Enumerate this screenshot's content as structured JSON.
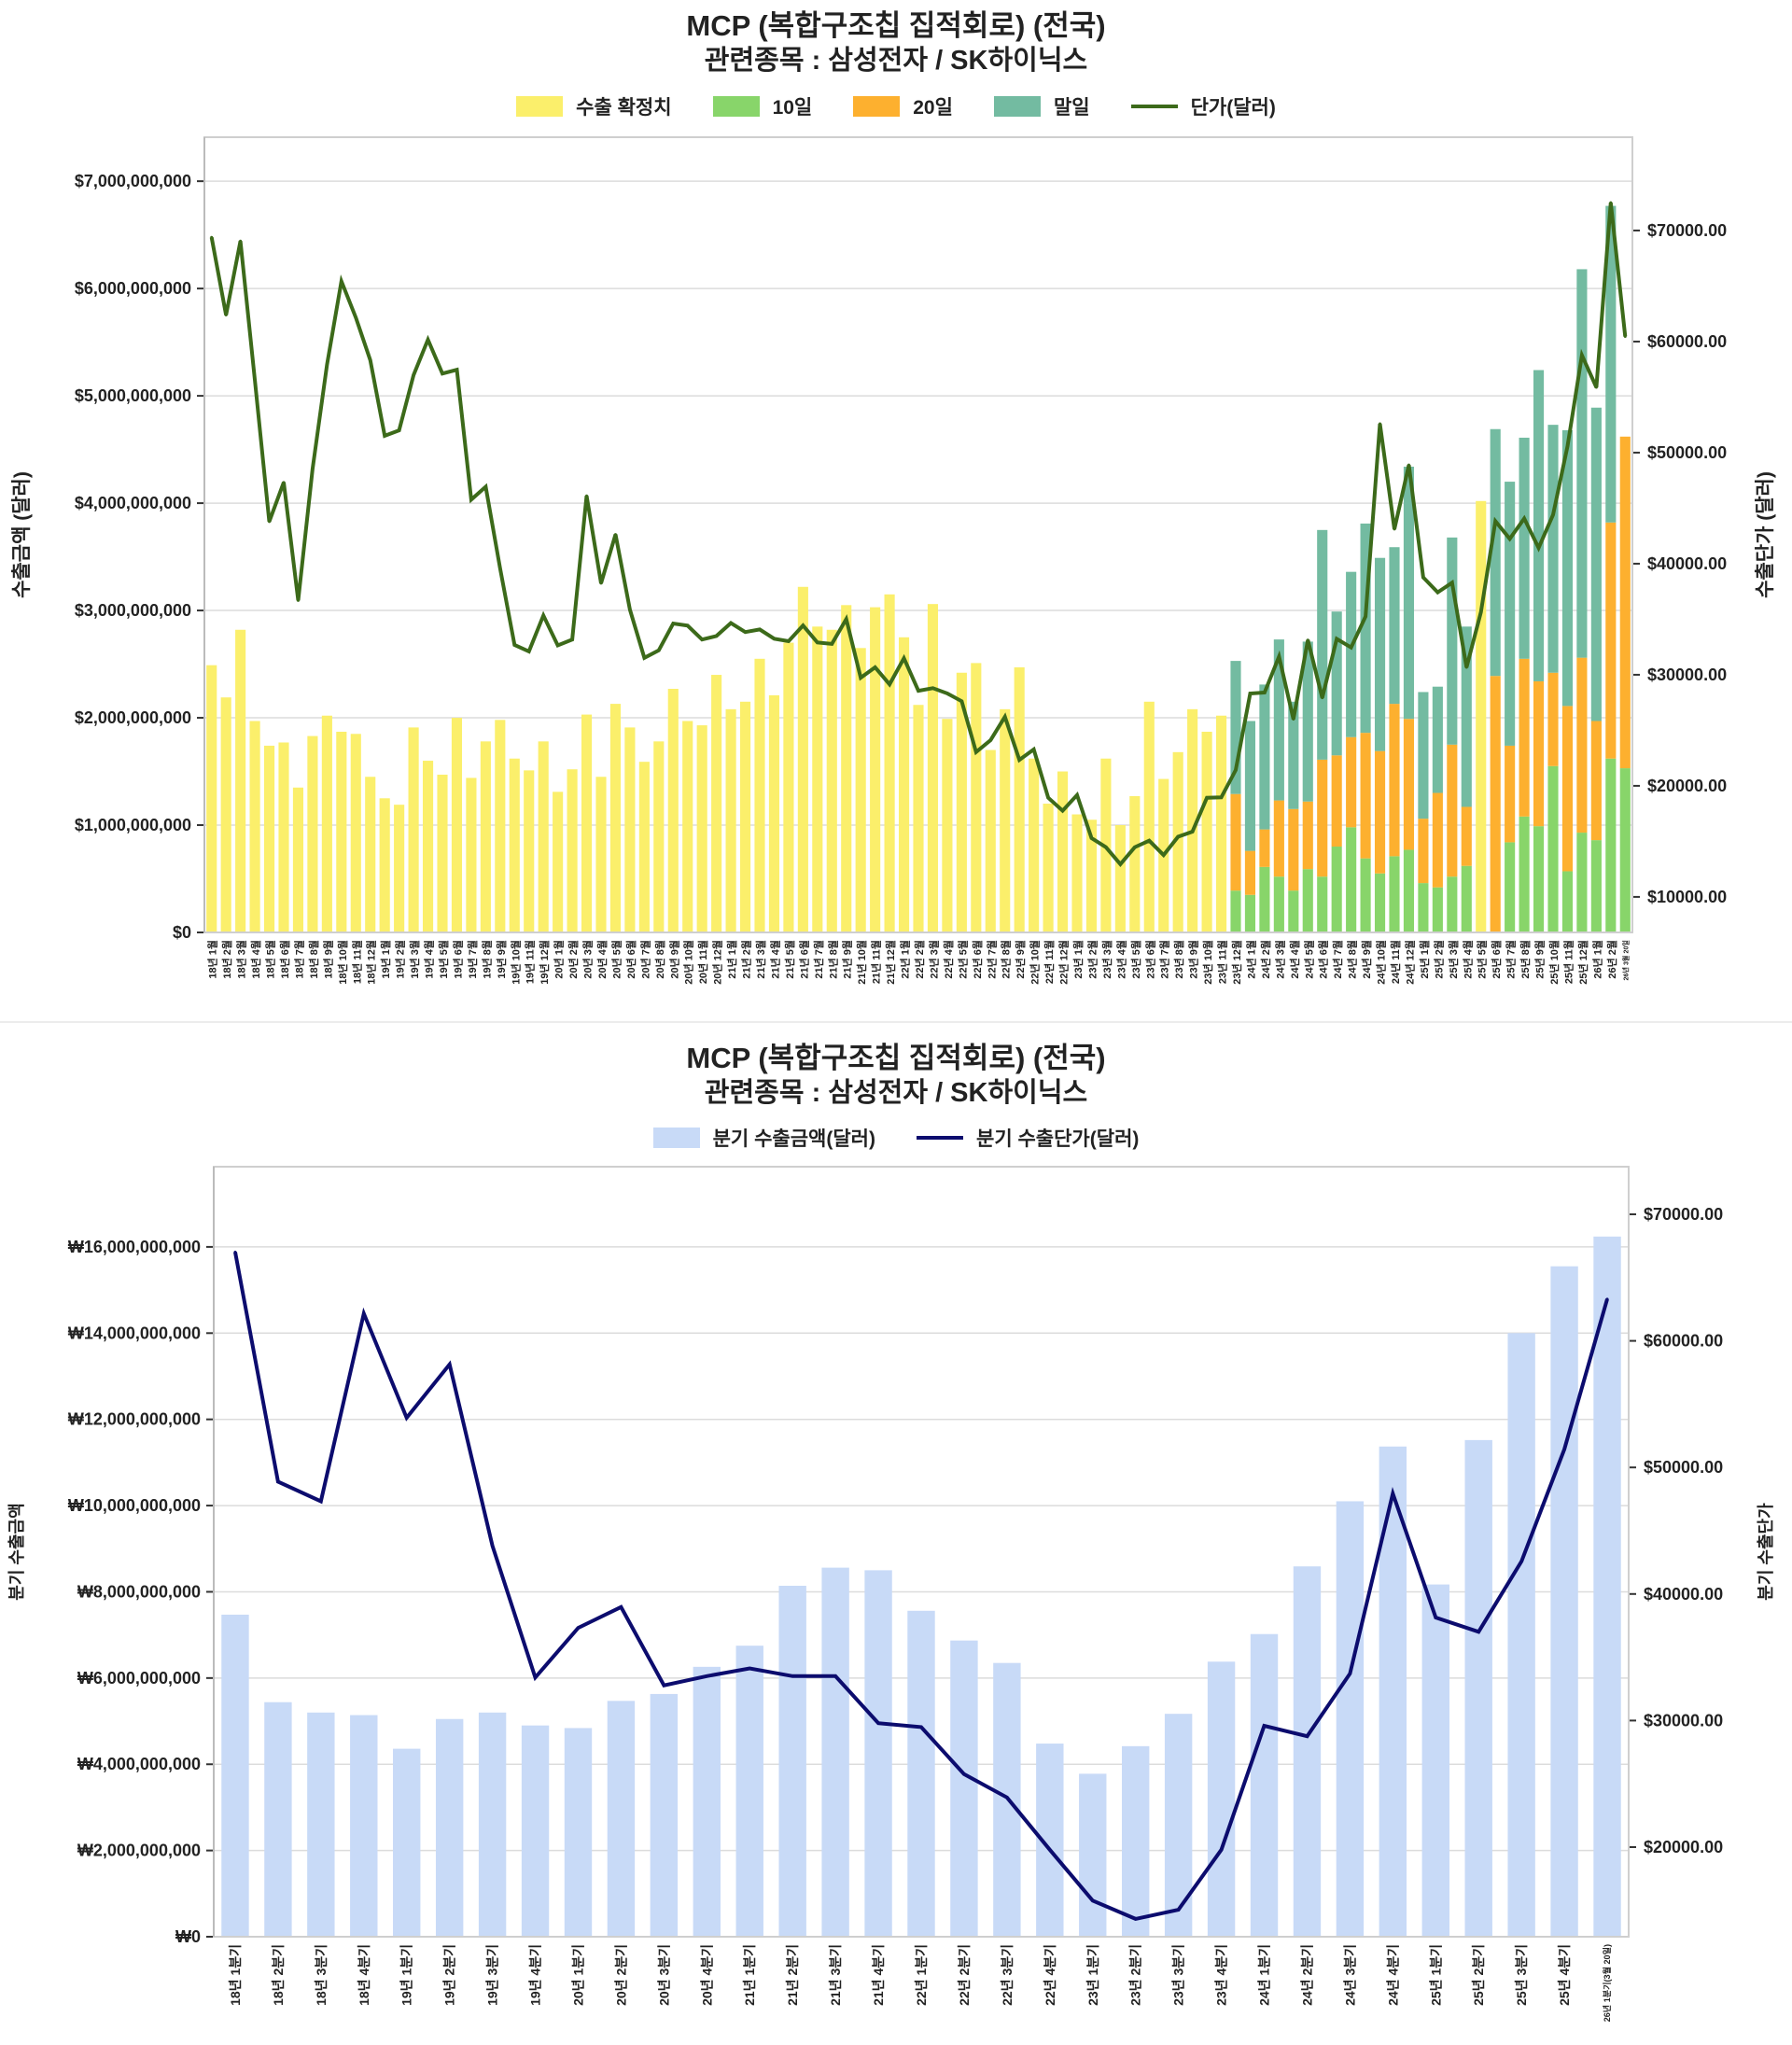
{
  "chart_data": [
    {
      "type": "bar+line",
      "title": "MCP (복합구조칩 집적회로) (전국)",
      "subtitle": "관련종목 : 삼성전자 / SK하이닉스",
      "legend": [
        "수출 확정치",
        "10일",
        "20일",
        "말일",
        "단가(달러)"
      ],
      "ylabel_left": "수출금액 (달러)",
      "ylabel_right": "수출단가 (달러)",
      "ylim_left_billion_usd": [
        0,
        7.41
      ],
      "ylim_right": [
        6800,
        78400
      ],
      "grid": true,
      "legend_position": "top-center",
      "colors": {
        "confirmed": "#fbef6b",
        "d10": "#88d56a",
        "d20": "#fdb02f",
        "end": "#73bba1",
        "price": "#3c6a1a"
      },
      "y_left_ticks": {
        "values": [
          0,
          1,
          2,
          3,
          4,
          5,
          6,
          7
        ],
        "labels": [
          "$0",
          "$1,000,000,000",
          "$2,000,000,000",
          "$3,000,000,000",
          "$4,000,000,000",
          "$5,000,000,000",
          "$6,000,000,000",
          "$7,000,000,000"
        ]
      },
      "y_right_ticks": {
        "values": [
          10000,
          20000,
          30000,
          40000,
          50000,
          60000,
          70000
        ],
        "labels": [
          "$10000.00",
          "$20000.00",
          "$30000.00",
          "$40000.00",
          "$50000.00",
          "$60000.00",
          "$70000.00"
        ]
      },
      "categories": [
        "18년 1월",
        "18년 2월",
        "18년 3월",
        "18년 4월",
        "18년 5월",
        "18년 6월",
        "18년 7월",
        "18년 8월",
        "18년 9월",
        "18년 10월",
        "18년 11월",
        "18년 12월",
        "19년 1월",
        "19년 2월",
        "19년 3월",
        "19년 4월",
        "19년 5월",
        "19년 6월",
        "19년 7월",
        "19년 8월",
        "19년 9월",
        "19년 10월",
        "19년 11월",
        "19년 12월",
        "20년 1월",
        "20년 2월",
        "20년 3월",
        "20년 4월",
        "20년 5월",
        "20년 6월",
        "20년 7월",
        "20년 8월",
        "20년 9월",
        "20년 10월",
        "20년 11월",
        "20년 12월",
        "21년 1월",
        "21년 2월",
        "21년 3월",
        "21년 4월",
        "21년 5월",
        "21년 6월",
        "21년 7월",
        "21년 8월",
        "21년 9월",
        "21년 10월",
        "21년 11월",
        "21년 12월",
        "22년 1월",
        "22년 2월",
        "22년 3월",
        "22년 4월",
        "22년 5월",
        "22년 6월",
        "22년 7월",
        "22년 8월",
        "22년 9월",
        "22년 10월",
        "22년 11월",
        "22년 12월",
        "23년 1월",
        "23년 2월",
        "23년 3월",
        "23년 4월",
        "23년 5월",
        "23년 6월",
        "23년 7월",
        "23년 8월",
        "23년 9월",
        "23년 10월",
        "23년 11월",
        "23년 12월",
        "24년 1월",
        "24년 2월",
        "24년 3월",
        "24년 4월",
        "24년 5월",
        "24년 6월",
        "24년 7월",
        "24년 8월",
        "24년 9월",
        "24년 10월",
        "24년 11월",
        "24년 12월",
        "25년 1월",
        "25년 2월",
        "25년 3월",
        "25년 4월",
        "25년 5월",
        "25년 6월",
        "25년 7월",
        "25년 8월",
        "25년 9월",
        "25년 10월",
        "25년 11월",
        "25년 12월",
        "26년 1월",
        "26년 2월",
        "26년 3월 20일"
      ],
      "series": [
        {
          "name": "수출 확정치",
          "type": "bar",
          "values_billion_usd": [
            2.49,
            2.19,
            2.82,
            1.97,
            1.74,
            1.77,
            1.35,
            1.83,
            2.02,
            1.87,
            1.85,
            1.45,
            1.25,
            1.19,
            1.91,
            1.6,
            1.47,
            2.0,
            1.44,
            1.78,
            1.98,
            1.62,
            1.51,
            1.78,
            1.31,
            1.52,
            2.03,
            1.45,
            2.13,
            1.91,
            1.59,
            1.78,
            2.27,
            1.97,
            1.93,
            2.4,
            2.08,
            2.15,
            2.55,
            2.21,
            2.7,
            3.22,
            2.85,
            2.82,
            3.05,
            2.65,
            3.03,
            3.15,
            2.75,
            2.12,
            3.06,
            1.99,
            2.42,
            2.51,
            1.7,
            2.08,
            2.47,
            1.62,
            1.2,
            1.5,
            1.1,
            1.05,
            1.62,
            1.0,
            1.27,
            2.15,
            1.43,
            1.68,
            2.08,
            1.87,
            2.02,
            null,
            null,
            null,
            null,
            null,
            null,
            null,
            null,
            null,
            null,
            null,
            null,
            null,
            null,
            null,
            null,
            null,
            4.02,
            null,
            null,
            null,
            null,
            null,
            null,
            null,
            null,
            null,
            null
          ]
        },
        {
          "name": "10일",
          "type": "stacked-bar",
          "values_billion_usd": [
            null,
            null,
            null,
            null,
            null,
            null,
            null,
            null,
            null,
            null,
            null,
            null,
            null,
            null,
            null,
            null,
            null,
            null,
            null,
            null,
            null,
            null,
            null,
            null,
            null,
            null,
            null,
            null,
            null,
            null,
            null,
            null,
            null,
            null,
            null,
            null,
            null,
            null,
            null,
            null,
            null,
            null,
            null,
            null,
            null,
            null,
            null,
            null,
            null,
            null,
            null,
            null,
            null,
            null,
            null,
            null,
            null,
            null,
            null,
            null,
            null,
            null,
            null,
            null,
            null,
            null,
            null,
            null,
            null,
            null,
            null,
            0.39,
            0.35,
            0.61,
            0.52,
            0.39,
            0.59,
            0.52,
            0.8,
            0.98,
            0.69,
            0.55,
            0.71,
            0.77,
            0.46,
            0.42,
            0.52,
            0.62,
            null,
            0,
            0.84,
            1.08,
            0.99,
            1.55,
            0.57,
            0.93,
            0.86,
            1.62,
            1.53
          ]
        },
        {
          "name": "20일",
          "type": "stacked-bar",
          "values_billion_usd": [
            null,
            null,
            null,
            null,
            null,
            null,
            null,
            null,
            null,
            null,
            null,
            null,
            null,
            null,
            null,
            null,
            null,
            null,
            null,
            null,
            null,
            null,
            null,
            null,
            null,
            null,
            null,
            null,
            null,
            null,
            null,
            null,
            null,
            null,
            null,
            null,
            null,
            null,
            null,
            null,
            null,
            null,
            null,
            null,
            null,
            null,
            null,
            null,
            null,
            null,
            null,
            null,
            null,
            null,
            null,
            null,
            null,
            null,
            null,
            null,
            null,
            null,
            null,
            null,
            null,
            null,
            null,
            null,
            null,
            null,
            null,
            0.9,
            0.41,
            0.35,
            0.71,
            0.76,
            0.63,
            1.09,
            0.85,
            0.84,
            1.17,
            1.14,
            1.42,
            1.22,
            0.6,
            0.88,
            1.23,
            0.55,
            null,
            2.39,
            0.9,
            1.47,
            1.35,
            0.87,
            1.54,
            1.63,
            1.11,
            2.2,
            3.09
          ]
        },
        {
          "name": "말일",
          "type": "stacked-bar",
          "values_billion_usd": [
            null,
            null,
            null,
            null,
            null,
            null,
            null,
            null,
            null,
            null,
            null,
            null,
            null,
            null,
            null,
            null,
            null,
            null,
            null,
            null,
            null,
            null,
            null,
            null,
            null,
            null,
            null,
            null,
            null,
            null,
            null,
            null,
            null,
            null,
            null,
            null,
            null,
            null,
            null,
            null,
            null,
            null,
            null,
            null,
            null,
            null,
            null,
            null,
            null,
            null,
            null,
            null,
            null,
            null,
            null,
            null,
            null,
            null,
            null,
            null,
            null,
            null,
            null,
            null,
            null,
            null,
            null,
            null,
            null,
            null,
            null,
            1.24,
            1.21,
            1.35,
            1.5,
            1.0,
            1.49,
            2.14,
            1.34,
            1.54,
            1.95,
            1.8,
            1.46,
            2.35,
            1.18,
            0.99,
            1.93,
            1.68,
            null,
            2.3,
            2.46,
            2.06,
            2.9,
            2.31,
            2.57,
            3.62,
            2.92,
            2.95,
            0
          ]
        },
        {
          "name": "단가(달러)",
          "type": "line",
          "axis": "right",
          "values": [
            69390,
            62390,
            69050,
            56500,
            43790,
            47320,
            36690,
            48530,
            57940,
            65430,
            62150,
            58330,
            51520,
            52000,
            56980,
            60170,
            57120,
            57460,
            45770,
            46930,
            39590,
            32680,
            32100,
            35340,
            32640,
            33170,
            46110,
            38240,
            42630,
            35870,
            31520,
            32200,
            34620,
            34420,
            33170,
            33490,
            34660,
            33840,
            34080,
            33250,
            33020,
            34430,
            32900,
            32780,
            35010,
            29730,
            30670,
            29140,
            31490,
            28560,
            28790,
            28320,
            27620,
            23040,
            24100,
            26210,
            22340,
            23280,
            18930,
            17760,
            19170,
            15290,
            14470,
            12940,
            14470,
            15060,
            13770,
            15410,
            15880,
            18930,
            18960,
            21420,
            28310,
            28400,
            31640,
            26000,
            33130,
            27930,
            33230,
            32460,
            35250,
            52600,
            43110,
            48890,
            38770,
            37420,
            38290,
            30670,
            35640,
            43830,
            42240,
            44070,
            41420,
            44410,
            50580,
            58770,
            55880,
            72510,
            60460
          ]
        }
      ]
    },
    {
      "type": "bar+line",
      "title": "MCP (복합구조칩 집적회로) (전국)",
      "subtitle": "관련종목 : 삼성전자 / SK하이닉스",
      "legend": [
        "분기 수출금액(달러)",
        "분기 수출단가(달러)"
      ],
      "ylabel_left": "분기 수출금액",
      "ylabel_right": "분기 수출단가",
      "ylim_left_billion": [
        0,
        17.86
      ],
      "ylim_right": [
        12920,
        73760
      ],
      "grid": true,
      "legend_position": "top-center",
      "colors": {
        "bar": "#c8daf7",
        "line": "#0c0c6e"
      },
      "y_left_ticks": {
        "values": [
          0,
          2,
          4,
          6,
          8,
          10,
          12,
          14,
          16
        ],
        "labels": [
          "₩0",
          "₩2,000,000,000",
          "₩4,000,000,000",
          "₩6,000,000,000",
          "₩8,000,000,000",
          "₩10,000,000,000",
          "₩12,000,000,000",
          "₩14,000,000,000",
          "₩16,000,000,000"
        ]
      },
      "y_right_ticks": {
        "values": [
          20000,
          30000,
          40000,
          50000,
          60000,
          70000
        ],
        "labels": [
          "$20000.00",
          "$30000.00",
          "$40000.00",
          "$50000.00",
          "$60000.00",
          "$70000.00"
        ]
      },
      "categories": [
        "18년 1분기",
        "18년 2분기",
        "18년 3분기",
        "18년 4분기",
        "19년 1분기",
        "19년 2분기",
        "19년 3분기",
        "19년 4분기",
        "20년 1분기",
        "20년 2분기",
        "20년 3분기",
        "20년 4분기",
        "21년 1분기",
        "21년 2분기",
        "21년 3분기",
        "21년 4분기",
        "22년 1분기",
        "22년 2분기",
        "22년 3분기",
        "22년 4분기",
        "23년 1분기",
        "23년 2분기",
        "23년 3분기",
        "23년 4분기",
        "24년 1분기",
        "24년 2분기",
        "24년 3분기",
        "24년 4분기",
        "25년 1분기",
        "25년 2분기",
        "25년 3분기",
        "25년 4분기",
        "26년 1분기(3월 20일)"
      ],
      "series": [
        {
          "name": "분기 수출금액(달러)",
          "type": "bar",
          "values_billion": [
            7.47,
            5.44,
            5.2,
            5.14,
            4.36,
            5.05,
            5.2,
            4.9,
            4.84,
            5.47,
            5.63,
            6.26,
            6.75,
            8.14,
            8.56,
            8.5,
            7.56,
            6.87,
            6.35,
            4.48,
            3.78,
            4.42,
            5.17,
            6.38,
            7.02,
            8.59,
            10.1,
            11.37,
            8.17,
            11.52,
            14.0,
            15.55,
            16.24
          ]
        },
        {
          "name": "분기 수출단가(달러)",
          "type": "line",
          "axis": "right",
          "values": [
            67010,
            48870,
            47320,
            62160,
            53920,
            58140,
            43810,
            33400,
            37320,
            38970,
            32780,
            33510,
            34120,
            33510,
            33510,
            29790,
            29480,
            25770,
            23920,
            19790,
            15770,
            14330,
            15050,
            19790,
            29590,
            28760,
            33710,
            47940,
            38140,
            37010,
            42580,
            51440,
            63300
          ]
        }
      ]
    }
  ]
}
